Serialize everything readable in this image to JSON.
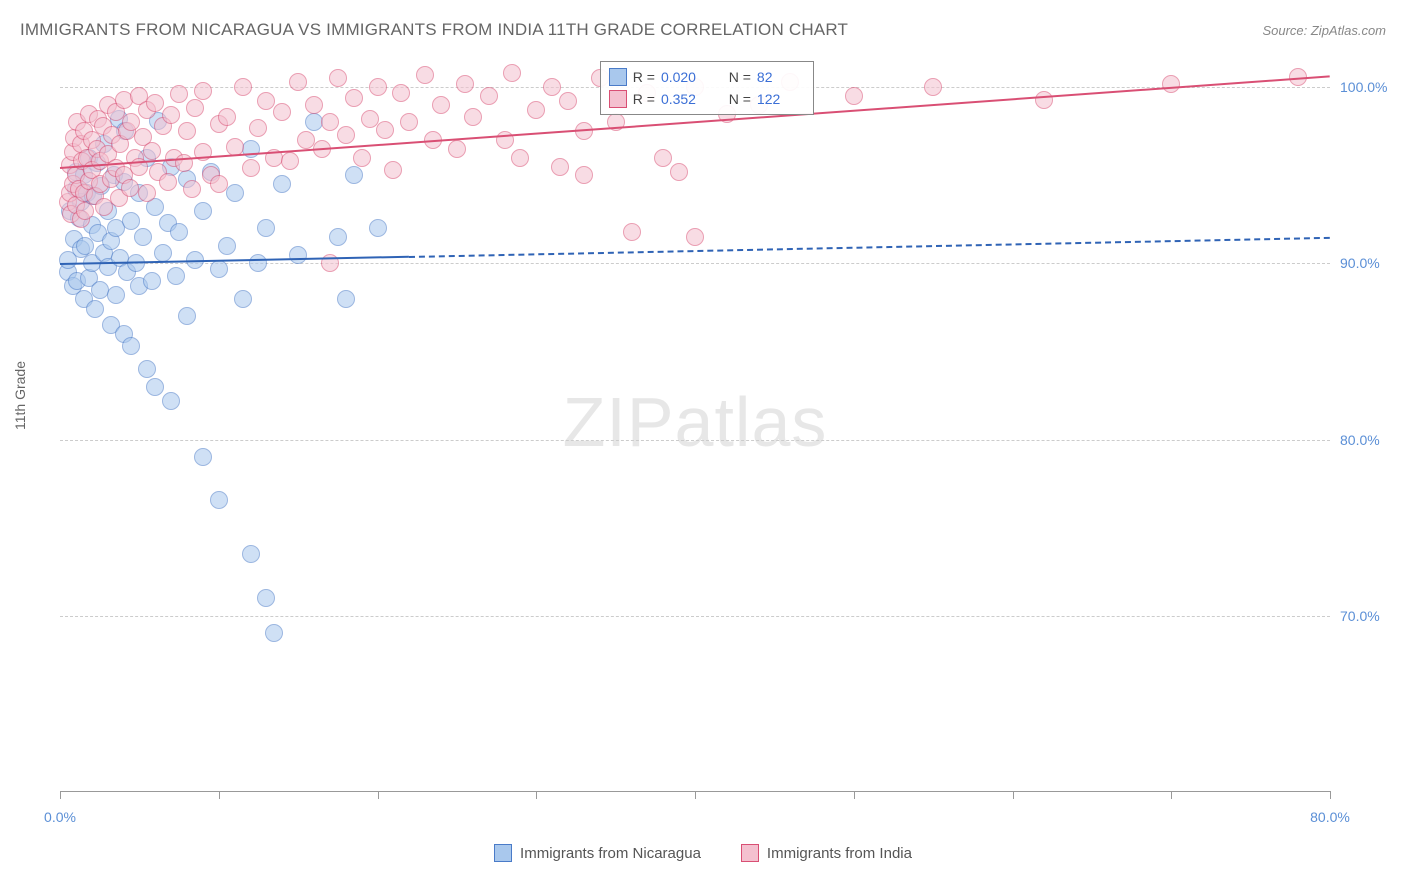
{
  "title": "IMMIGRANTS FROM NICARAGUA VS IMMIGRANTS FROM INDIA 11TH GRADE CORRELATION CHART",
  "source": "Source: ZipAtlas.com",
  "y_axis_label": "11th Grade",
  "watermark_a": "ZIP",
  "watermark_b": "atlas",
  "chart": {
    "type": "scatter",
    "background_color": "#ffffff",
    "grid_color": "#cccccc",
    "xlim": [
      0,
      80
    ],
    "ylim": [
      60,
      102
    ],
    "x_ticks": [
      0,
      10,
      20,
      30,
      40,
      50,
      60,
      70,
      80
    ],
    "x_tick_labels": {
      "0": "0.0%",
      "80": "80.0%"
    },
    "y_ticks": [
      70,
      80,
      90,
      100
    ],
    "y_tick_labels": {
      "70": "70.0%",
      "80": "80.0%",
      "90": "90.0%",
      "100": "100.0%"
    },
    "point_radius": 9,
    "point_opacity": 0.55,
    "series": [
      {
        "name": "Immigrants from Nicaragua",
        "color_fill": "#a9c8ed",
        "color_stroke": "#4a7bc8",
        "R": "0.020",
        "N": "82",
        "trend": {
          "x1": 0,
          "y1": 90.0,
          "x2": 80,
          "y2": 91.5,
          "solid_until_x": 22,
          "color": "#2f63b5",
          "width": 2.5,
          "dash": "6 5"
        },
        "points": [
          [
            0.5,
            89.5
          ],
          [
            0.5,
            90.2
          ],
          [
            0.6,
            93.0
          ],
          [
            0.8,
            88.7
          ],
          [
            0.9,
            91.4
          ],
          [
            1.0,
            94.2
          ],
          [
            1.0,
            95.2
          ],
          [
            1.1,
            89.0
          ],
          [
            1.2,
            92.6
          ],
          [
            1.3,
            90.8
          ],
          [
            1.3,
            93.5
          ],
          [
            1.5,
            88.0
          ],
          [
            1.5,
            95.0
          ],
          [
            1.6,
            91.0
          ],
          [
            1.7,
            94.0
          ],
          [
            1.8,
            89.2
          ],
          [
            1.8,
            96.0
          ],
          [
            2.0,
            92.2
          ],
          [
            2.0,
            90.0
          ],
          [
            2.1,
            93.8
          ],
          [
            2.2,
            87.4
          ],
          [
            2.3,
            95.7
          ],
          [
            2.4,
            91.7
          ],
          [
            2.5,
            88.5
          ],
          [
            2.6,
            94.4
          ],
          [
            2.8,
            90.6
          ],
          [
            2.8,
            96.8
          ],
          [
            3.0,
            89.8
          ],
          [
            3.0,
            93.0
          ],
          [
            3.2,
            91.3
          ],
          [
            3.2,
            86.5
          ],
          [
            3.4,
            95.0
          ],
          [
            3.5,
            88.2
          ],
          [
            3.5,
            92.0
          ],
          [
            3.7,
            98.2
          ],
          [
            3.8,
            90.3
          ],
          [
            4.0,
            94.6
          ],
          [
            4.0,
            86.0
          ],
          [
            4.1,
            97.5
          ],
          [
            4.2,
            89.5
          ],
          [
            4.5,
            92.4
          ],
          [
            4.5,
            85.3
          ],
          [
            4.8,
            90.0
          ],
          [
            5.0,
            94.0
          ],
          [
            5.0,
            88.7
          ],
          [
            5.2,
            91.5
          ],
          [
            5.5,
            84.0
          ],
          [
            5.5,
            96.0
          ],
          [
            5.8,
            89.0
          ],
          [
            6.0,
            93.2
          ],
          [
            6.0,
            83.0
          ],
          [
            6.2,
            98.1
          ],
          [
            6.5,
            90.6
          ],
          [
            6.8,
            92.3
          ],
          [
            7.0,
            95.5
          ],
          [
            7.0,
            82.2
          ],
          [
            7.3,
            89.3
          ],
          [
            7.5,
            91.8
          ],
          [
            8.0,
            94.8
          ],
          [
            8.0,
            87.0
          ],
          [
            8.5,
            90.2
          ],
          [
            9.0,
            93.0
          ],
          [
            9.0,
            79.0
          ],
          [
            9.5,
            95.2
          ],
          [
            10.0,
            89.7
          ],
          [
            10.0,
            76.6
          ],
          [
            10.5,
            91.0
          ],
          [
            11.0,
            94.0
          ],
          [
            11.5,
            88.0
          ],
          [
            12.0,
            96.5
          ],
          [
            12.0,
            73.5
          ],
          [
            12.5,
            90.0
          ],
          [
            13.0,
            92.0
          ],
          [
            13.0,
            71.0
          ],
          [
            13.5,
            69.0
          ],
          [
            14.0,
            94.5
          ],
          [
            15.0,
            90.5
          ],
          [
            16.0,
            98.0
          ],
          [
            17.5,
            91.5
          ],
          [
            18.0,
            88.0
          ],
          [
            18.5,
            95.0
          ],
          [
            20.0,
            92.0
          ]
        ]
      },
      {
        "name": "Immigrants from India",
        "color_fill": "#f4c0cf",
        "color_stroke": "#d94f74",
        "R": "0.352",
        "N": "122",
        "trend": {
          "x1": 0,
          "y1": 95.5,
          "x2": 80,
          "y2": 100.7,
          "solid_until_x": 80,
          "color": "#d94f74",
          "width": 2.5,
          "dash": ""
        },
        "points": [
          [
            0.5,
            93.5
          ],
          [
            0.6,
            94.0
          ],
          [
            0.6,
            95.6
          ],
          [
            0.7,
            92.8
          ],
          [
            0.8,
            96.3
          ],
          [
            0.8,
            94.5
          ],
          [
            0.9,
            97.1
          ],
          [
            1.0,
            93.3
          ],
          [
            1.0,
            95.0
          ],
          [
            1.1,
            98.0
          ],
          [
            1.2,
            94.2
          ],
          [
            1.3,
            96.8
          ],
          [
            1.3,
            92.5
          ],
          [
            1.4,
            95.8
          ],
          [
            1.5,
            94.0
          ],
          [
            1.5,
            97.5
          ],
          [
            1.6,
            93.0
          ],
          [
            1.7,
            96.0
          ],
          [
            1.8,
            98.5
          ],
          [
            1.8,
            94.7
          ],
          [
            2.0,
            95.3
          ],
          [
            2.0,
            97.0
          ],
          [
            2.2,
            93.8
          ],
          [
            2.3,
            96.5
          ],
          [
            2.4,
            98.2
          ],
          [
            2.5,
            94.5
          ],
          [
            2.5,
            95.8
          ],
          [
            2.7,
            97.8
          ],
          [
            2.8,
            93.2
          ],
          [
            3.0,
            96.2
          ],
          [
            3.0,
            99.0
          ],
          [
            3.2,
            94.8
          ],
          [
            3.3,
            97.3
          ],
          [
            3.5,
            95.4
          ],
          [
            3.5,
            98.6
          ],
          [
            3.7,
            93.7
          ],
          [
            3.8,
            96.8
          ],
          [
            4.0,
            99.3
          ],
          [
            4.0,
            95.0
          ],
          [
            4.2,
            97.5
          ],
          [
            4.4,
            94.3
          ],
          [
            4.5,
            98.0
          ],
          [
            4.7,
            96.0
          ],
          [
            5.0,
            99.5
          ],
          [
            5.0,
            95.5
          ],
          [
            5.2,
            97.2
          ],
          [
            5.5,
            94.0
          ],
          [
            5.5,
            98.7
          ],
          [
            5.8,
            96.4
          ],
          [
            6.0,
            99.1
          ],
          [
            6.2,
            95.2
          ],
          [
            6.5,
            97.8
          ],
          [
            6.8,
            94.6
          ],
          [
            7.0,
            98.4
          ],
          [
            7.2,
            96.0
          ],
          [
            7.5,
            99.6
          ],
          [
            7.8,
            95.7
          ],
          [
            8.0,
            97.5
          ],
          [
            8.3,
            94.2
          ],
          [
            8.5,
            98.8
          ],
          [
            9.0,
            96.3
          ],
          [
            9.0,
            99.8
          ],
          [
            9.5,
            95.0
          ],
          [
            10.0,
            97.9
          ],
          [
            10.0,
            94.5
          ],
          [
            10.5,
            98.3
          ],
          [
            11.0,
            96.6
          ],
          [
            11.5,
            100.0
          ],
          [
            12.0,
            95.4
          ],
          [
            12.5,
            97.7
          ],
          [
            13.0,
            99.2
          ],
          [
            13.5,
            96.0
          ],
          [
            14.0,
            98.6
          ],
          [
            14.5,
            95.8
          ],
          [
            15.0,
            100.3
          ],
          [
            15.5,
            97.0
          ],
          [
            16.0,
            99.0
          ],
          [
            16.5,
            96.5
          ],
          [
            17.0,
            98.0
          ],
          [
            17.0,
            90.0
          ],
          [
            17.5,
            100.5
          ],
          [
            18.0,
            97.3
          ],
          [
            18.5,
            99.4
          ],
          [
            19.0,
            96.0
          ],
          [
            19.5,
            98.2
          ],
          [
            20.0,
            100.0
          ],
          [
            20.5,
            97.6
          ],
          [
            21.0,
            95.3
          ],
          [
            21.5,
            99.7
          ],
          [
            22.0,
            98.0
          ],
          [
            23.0,
            100.7
          ],
          [
            23.5,
            97.0
          ],
          [
            24.0,
            99.0
          ],
          [
            25.0,
            96.5
          ],
          [
            25.5,
            100.2
          ],
          [
            26.0,
            98.3
          ],
          [
            27.0,
            99.5
          ],
          [
            28.0,
            97.0
          ],
          [
            28.5,
            100.8
          ],
          [
            29.0,
            96.0
          ],
          [
            30.0,
            98.7
          ],
          [
            31.0,
            100.0
          ],
          [
            31.5,
            95.5
          ],
          [
            32.0,
            99.2
          ],
          [
            33.0,
            97.5
          ],
          [
            33.0,
            95.0
          ],
          [
            34.0,
            100.5
          ],
          [
            35.0,
            98.0
          ],
          [
            36.0,
            91.8
          ],
          [
            37.0,
            99.7
          ],
          [
            38.0,
            96.0
          ],
          [
            39.0,
            95.2
          ],
          [
            40.0,
            100.0
          ],
          [
            40.0,
            91.5
          ],
          [
            42.0,
            98.5
          ],
          [
            44.0,
            99.0
          ],
          [
            46.0,
            100.3
          ],
          [
            50.0,
            99.5
          ],
          [
            55.0,
            100.0
          ],
          [
            62.0,
            99.3
          ],
          [
            70.0,
            100.2
          ],
          [
            78.0,
            100.6
          ]
        ]
      }
    ],
    "legend_box": {
      "labels": {
        "R": "R =",
        "N": "N ="
      }
    }
  },
  "bottom_legend": [
    {
      "label": "Immigrants from Nicaragua",
      "fill": "#a9c8ed",
      "stroke": "#4a7bc8"
    },
    {
      "label": "Immigrants from India",
      "fill": "#f4c0cf",
      "stroke": "#d94f74"
    }
  ]
}
